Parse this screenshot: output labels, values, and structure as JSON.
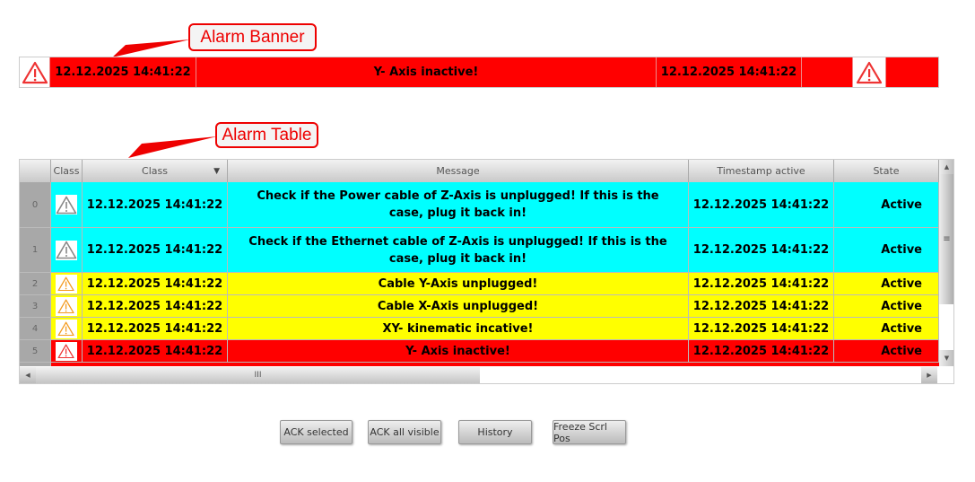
{
  "annotations": {
    "banner": "Alarm Banner",
    "table": "Alarm Table"
  },
  "banner": {
    "timestamp": "12.12.2025 14:41:22",
    "message": "Y- Axis inactive!",
    "timestamp_active": "12.12.2025 14:41:22",
    "color": "#ff0000"
  },
  "table": {
    "headers": {
      "class_icon": "Class",
      "class": "Class",
      "message": "Message",
      "timestamp": "Timestamp active",
      "state": "State"
    },
    "rows": [
      {
        "index": "0",
        "time": "12.12.2025 14:41:22",
        "message": "Check if the Power cable of Z-Axis  is unplugged! If this is the case, plug it back in!",
        "timestamp": "12.12.2025 14:41:22",
        "state": "Active",
        "color": "#00ffff",
        "icon": "warning-gray"
      },
      {
        "index": "1",
        "time": "12.12.2025 14:41:22",
        "message": "Check if the Ethernet cable of Z-Axis  is unplugged! If this is the case, plug it back in!",
        "timestamp": "12.12.2025 14:41:22",
        "state": "Active",
        "color": "#00ffff",
        "icon": "warning-gray"
      },
      {
        "index": "2",
        "time": "12.12.2025 14:41:22",
        "message": "Cable Y-Axis unplugged!",
        "timestamp": "12.12.2025 14:41:22",
        "state": "Active",
        "color": "#ffff00",
        "icon": "warning-orange"
      },
      {
        "index": "3",
        "time": "12.12.2025 14:41:22",
        "message": "Cable X-Axis unplugged!",
        "timestamp": "12.12.2025 14:41:22",
        "state": "Active",
        "color": "#ffff00",
        "icon": "warning-orange"
      },
      {
        "index": "4",
        "time": "12.12.2025 14:41:22",
        "message": "XY- kinematic incative!",
        "timestamp": "12.12.2025 14:41:22",
        "state": "Active",
        "color": "#ffff00",
        "icon": "warning-orange"
      },
      {
        "index": "5",
        "time": "12.12.2025 14:41:22",
        "message": "Y- Axis inactive!",
        "timestamp": "12.12.2025 14:41:22",
        "state": "Active",
        "color": "#ff0000",
        "icon": "warning-red"
      }
    ]
  },
  "buttons": {
    "ack_selected": "ACK selected",
    "ack_all": "ACK all visible",
    "history": "History",
    "freeze": "Freeze Scrl Pos"
  }
}
